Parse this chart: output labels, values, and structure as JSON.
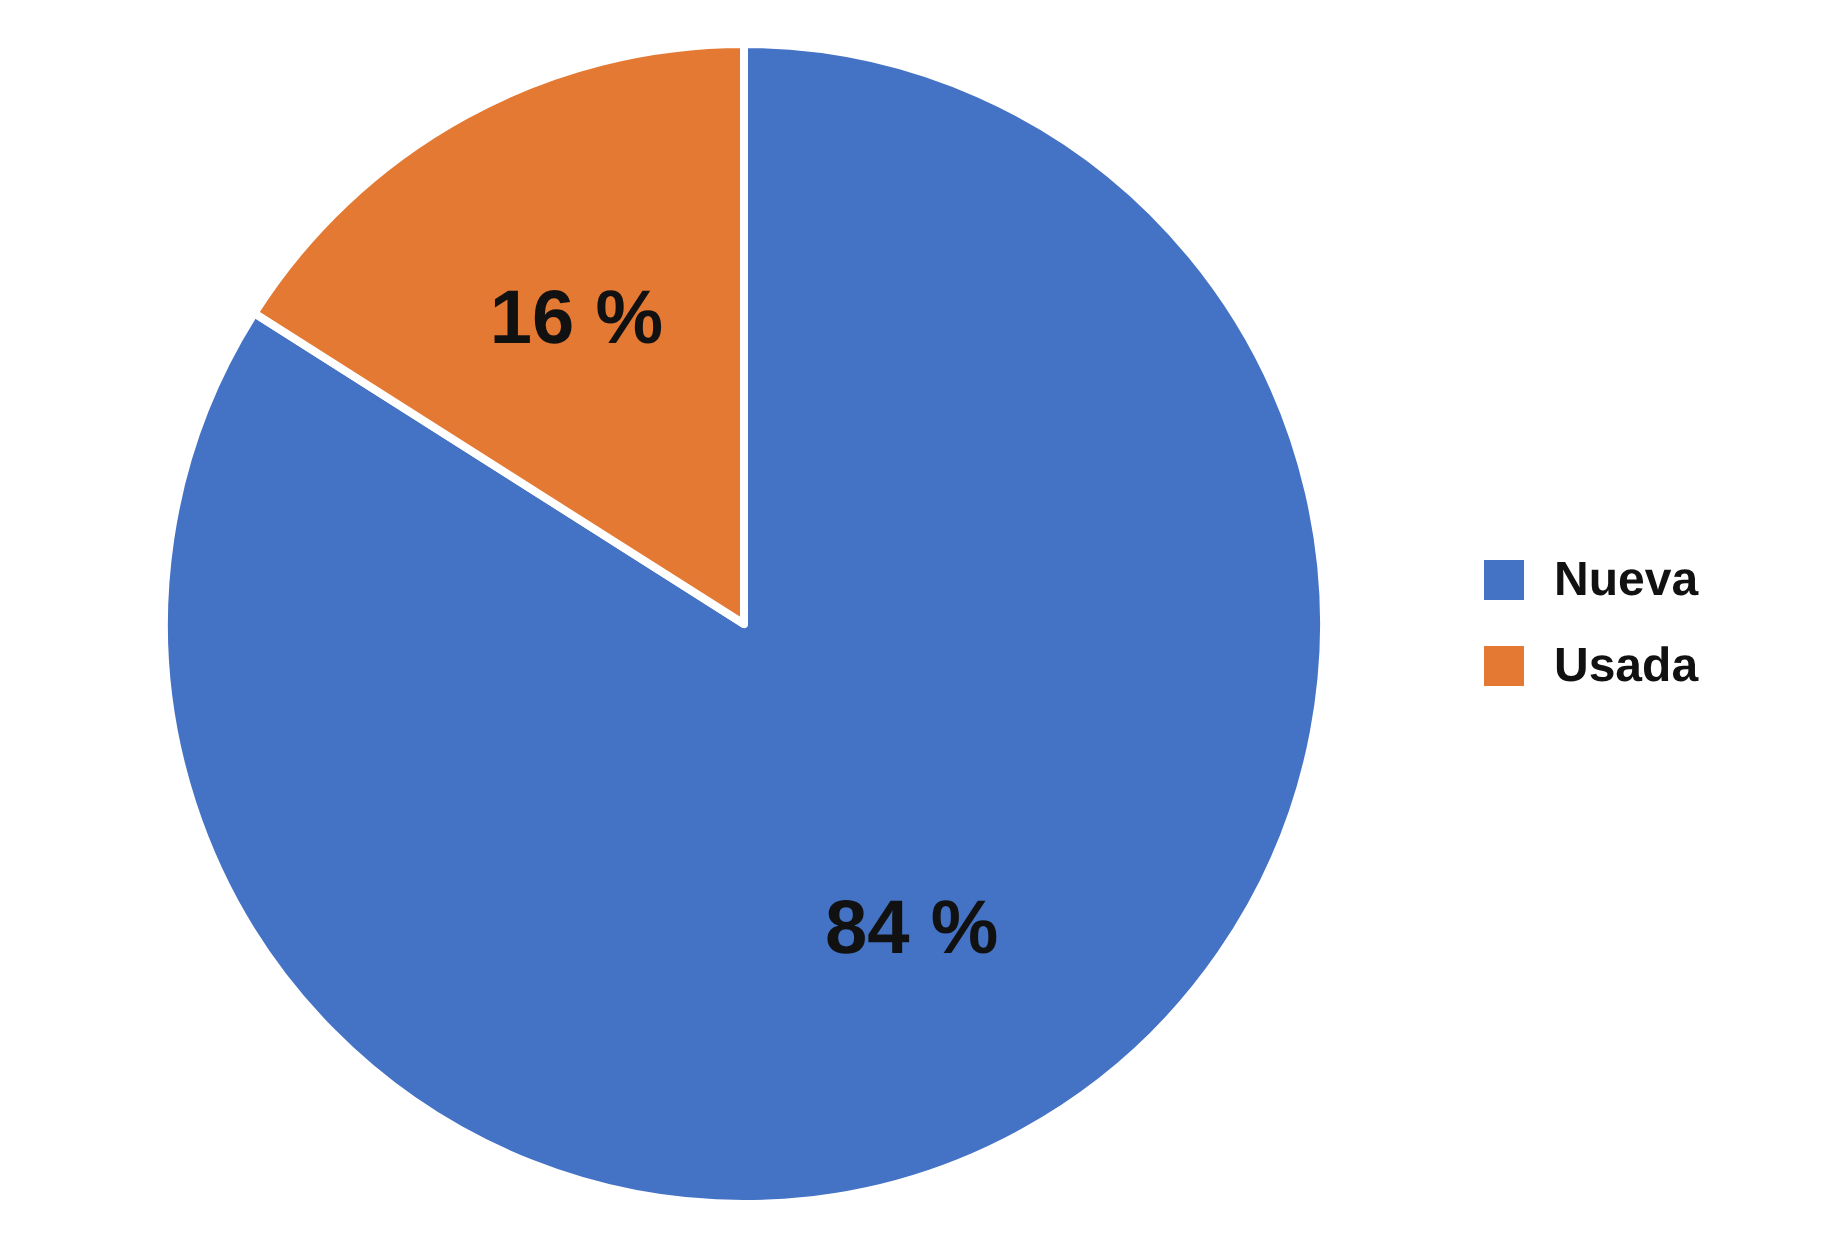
{
  "chart_data": {
    "type": "pie",
    "categories": [
      "Nueva",
      "Usada"
    ],
    "values": [
      84,
      16
    ],
    "colors": [
      "#4472c4",
      "#e37933"
    ],
    "value_labels": [
      "84 %",
      "16 %"
    ],
    "legend": "right"
  }
}
